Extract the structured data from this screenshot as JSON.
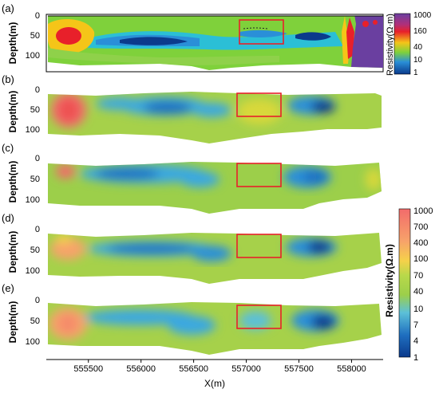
{
  "figure": {
    "panels": [
      {
        "label": "(a)",
        "style": "contour"
      },
      {
        "label": "(b)",
        "style": "smooth"
      },
      {
        "label": "(c)",
        "style": "smooth"
      },
      {
        "label": "(d)",
        "style": "smooth"
      },
      {
        "label": "(e)",
        "style": "smooth"
      }
    ],
    "ylabel": "Depth(m)",
    "xlabel": "X(m)",
    "highlight_color": "#e8202a"
  },
  "colorbar_top": {
    "label": "Resistivity(Ω·m)",
    "ticks": [
      "1000",
      "160",
      "40",
      "10",
      "1"
    ],
    "tick_values": [
      1000,
      160,
      40,
      10,
      1
    ],
    "colors": [
      "#6a3fa0",
      "#e8202a",
      "#f5c518",
      "#7fd13b",
      "#2a8fd8",
      "#0b3a8c"
    ]
  },
  "colorbar_bottom": {
    "label": "Resistivity(Ω.m)",
    "ticks": [
      "1000",
      "700",
      "400",
      "100",
      "70",
      "40",
      "10",
      "7",
      "4",
      "1"
    ],
    "tick_values": [
      1000,
      700,
      400,
      100,
      70,
      40,
      10,
      7,
      4,
      1
    ],
    "colors": [
      "#f26b6b",
      "#f7a36a",
      "#f5d14a",
      "#b8d84a",
      "#5cc0d8",
      "#1f6fc0",
      "#0b3a8c"
    ]
  },
  "chart_data": [
    {
      "type": "heatmap",
      "panel": "(a)",
      "ylabel": "Depth(m)",
      "yticks": [
        0,
        50,
        100
      ],
      "ylim": [
        0,
        120
      ],
      "xlim": [
        555100,
        558300
      ],
      "highlight_box": {
        "x": [
          556880,
          557330
        ],
        "y": [
          25,
          70
        ]
      }
    },
    {
      "type": "heatmap",
      "panel": "(b)",
      "ylabel": "Depth(m)",
      "yticks": [
        0,
        50,
        100
      ],
      "ylim": [
        0,
        120
      ],
      "xlim": [
        555100,
        558300
      ],
      "highlight_box": {
        "x": [
          556880,
          557330
        ],
        "y": [
          30,
          65
        ]
      }
    },
    {
      "type": "heatmap",
      "panel": "(c)",
      "ylabel": "Depth(m)",
      "yticks": [
        0,
        50,
        100
      ],
      "ylim": [
        0,
        120
      ],
      "xlim": [
        555100,
        558300
      ],
      "highlight_box": {
        "x": [
          556880,
          557330
        ],
        "y": [
          20,
          60
        ]
      }
    },
    {
      "type": "heatmap",
      "panel": "(d)",
      "ylabel": "Depth(m)",
      "yticks": [
        0,
        50,
        100
      ],
      "ylim": [
        0,
        120
      ],
      "xlim": [
        555100,
        558300
      ],
      "highlight_box": {
        "x": [
          556880,
          557330
        ],
        "y": [
          20,
          60
        ]
      }
    },
    {
      "type": "heatmap",
      "panel": "(e)",
      "ylabel": "Depth(m)",
      "yticks": [
        0,
        50,
        100
      ],
      "ylim": [
        0,
        120
      ],
      "xlim": [
        555100,
        558300
      ],
      "xlabel": "X(m)",
      "xticks": [
        555500,
        556000,
        556500,
        557000,
        557500,
        558000
      ],
      "highlight_box": {
        "x": [
          556880,
          557330
        ],
        "y": [
          20,
          55
        ]
      }
    }
  ]
}
